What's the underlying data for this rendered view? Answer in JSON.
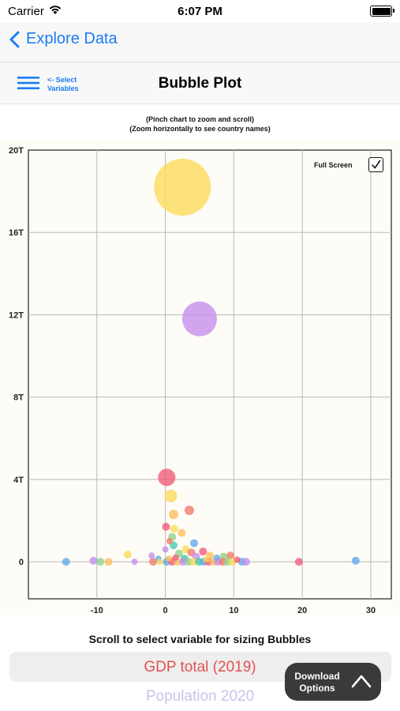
{
  "status_bar": {
    "carrier": "Carrier",
    "time": "6:07 PM"
  },
  "nav": {
    "back_label": "Explore Data"
  },
  "toolbar": {
    "select_vars_line1": "<- Select",
    "select_vars_line2": "Variables",
    "title": "Bubble Plot"
  },
  "hints": {
    "line1": "(Pinch chart to zoom and scroll)",
    "line2": "(Zoom horizontally to see country names)"
  },
  "full_screen": {
    "label": "Full Screen",
    "checked": true
  },
  "bottom": {
    "scroll_label": "Scroll to select variable for sizing Bubbles",
    "selected_option": "GDP total (2019)",
    "next_option": "Population 2020",
    "download_line1": "Download",
    "download_line2": "Options"
  },
  "colors": {
    "accent": "#1a7cf5",
    "selected_option": "#e05252",
    "next_option": "#c8c4ea"
  },
  "chart_data": {
    "type": "scatter",
    "title": "",
    "xlabel": "",
    "ylabel": "",
    "x_ticks": [
      "-10",
      "0",
      "10",
      "20",
      "30"
    ],
    "y_ticks": [
      "0",
      "4T",
      "8T",
      "12T",
      "16T",
      "20T"
    ],
    "xlim": [
      -20,
      33
    ],
    "ylim": [
      -1.8,
      20
    ],
    "grid": true,
    "points": [
      {
        "x": 2.5,
        "y": 18.2,
        "size": 36,
        "color": "#fcd858"
      },
      {
        "x": 5.0,
        "y": 11.8,
        "size": 22,
        "color": "#c38cec"
      },
      {
        "x": 0.2,
        "y": 4.1,
        "size": 11,
        "color": "#ef5a78"
      },
      {
        "x": 0.8,
        "y": 3.2,
        "size": 8,
        "color": "#fcd858"
      },
      {
        "x": 3.5,
        "y": 2.5,
        "size": 6,
        "color": "#f2786a"
      },
      {
        "x": 1.2,
        "y": 2.3,
        "size": 6,
        "color": "#fbbf5c"
      },
      {
        "x": 0.1,
        "y": 1.7,
        "size": 5,
        "color": "#ef5a78"
      },
      {
        "x": 1.3,
        "y": 1.6,
        "size": 5,
        "color": "#fcd858"
      },
      {
        "x": 2.4,
        "y": 1.4,
        "size": 5,
        "color": "#fbbf5c"
      },
      {
        "x": 1.0,
        "y": 1.2,
        "size": 5,
        "color": "#8ed18c"
      },
      {
        "x": 0.6,
        "y": 1.0,
        "size": 4,
        "color": "#f2786a"
      },
      {
        "x": 4.2,
        "y": 0.9,
        "size": 5,
        "color": "#62a7ec"
      },
      {
        "x": 1.2,
        "y": 0.8,
        "size": 5,
        "color": "#45c9a8"
      },
      {
        "x": 0.0,
        "y": 0.6,
        "size": 4,
        "color": "#c38cec"
      },
      {
        "x": 3.0,
        "y": 0.6,
        "size": 5,
        "color": "#fcd858"
      },
      {
        "x": 5.5,
        "y": 0.5,
        "size": 5,
        "color": "#ef5a78"
      },
      {
        "x": 2.0,
        "y": 0.4,
        "size": 5,
        "color": "#8ed18c"
      },
      {
        "x": 3.8,
        "y": 0.45,
        "size": 5,
        "color": "#f2786a"
      },
      {
        "x": -5.5,
        "y": 0.35,
        "size": 5,
        "color": "#fcd858"
      },
      {
        "x": -2.0,
        "y": 0.3,
        "size": 4,
        "color": "#c38cec"
      },
      {
        "x": 6.5,
        "y": 0.3,
        "size": 5,
        "color": "#fbbf5c"
      },
      {
        "x": 8.5,
        "y": 0.25,
        "size": 5,
        "color": "#8ed18c"
      },
      {
        "x": 9.5,
        "y": 0.3,
        "size": 5,
        "color": "#f2786a"
      },
      {
        "x": 7.5,
        "y": 0.2,
        "size": 4,
        "color": "#62a7ec"
      },
      {
        "x": 1.5,
        "y": 0.2,
        "size": 4,
        "color": "#ef5a78"
      },
      {
        "x": 4.5,
        "y": 0.25,
        "size": 5,
        "color": "#c38cec"
      },
      {
        "x": 0.5,
        "y": 0.15,
        "size": 4,
        "color": "#fbbf5c"
      },
      {
        "x": -1.0,
        "y": 0.15,
        "size": 4,
        "color": "#62a7ec"
      },
      {
        "x": 2.8,
        "y": 0.15,
        "size": 5,
        "color": "#45c9a8"
      },
      {
        "x": 6.0,
        "y": 0.12,
        "size": 4,
        "color": "#fcd858"
      },
      {
        "x": 10.5,
        "y": 0.1,
        "size": 4,
        "color": "#ef5a78"
      },
      {
        "x": -14.5,
        "y": 0.0,
        "size": 5,
        "color": "#62a7ec"
      },
      {
        "x": -10.5,
        "y": 0.05,
        "size": 5,
        "color": "#c38cec"
      },
      {
        "x": -9.5,
        "y": 0.0,
        "size": 5,
        "color": "#8ed18c"
      },
      {
        "x": -8.3,
        "y": 0.0,
        "size": 5,
        "color": "#fbbf5c"
      },
      {
        "x": -4.5,
        "y": 0.0,
        "size": 4,
        "color": "#c38cec"
      },
      {
        "x": -1.8,
        "y": 0.0,
        "size": 5,
        "color": "#f2786a"
      },
      {
        "x": -0.8,
        "y": 0.0,
        "size": 4,
        "color": "#fcd858"
      },
      {
        "x": 0.2,
        "y": 0.0,
        "size": 5,
        "color": "#62a7ec"
      },
      {
        "x": 1.0,
        "y": 0.0,
        "size": 5,
        "color": "#ef5a78"
      },
      {
        "x": 1.8,
        "y": 0.0,
        "size": 5,
        "color": "#fbbf5c"
      },
      {
        "x": 2.6,
        "y": 0.0,
        "size": 5,
        "color": "#c38cec"
      },
      {
        "x": 3.4,
        "y": 0.0,
        "size": 5,
        "color": "#8ed18c"
      },
      {
        "x": 4.1,
        "y": 0.0,
        "size": 5,
        "color": "#fcd858"
      },
      {
        "x": 4.9,
        "y": 0.0,
        "size": 5,
        "color": "#45c9a8"
      },
      {
        "x": 5.6,
        "y": 0.0,
        "size": 5,
        "color": "#62a7ec"
      },
      {
        "x": 6.3,
        "y": 0.0,
        "size": 5,
        "color": "#ef5a78"
      },
      {
        "x": 7.0,
        "y": 0.0,
        "size": 5,
        "color": "#fbbf5c"
      },
      {
        "x": 7.7,
        "y": 0.0,
        "size": 5,
        "color": "#c38cec"
      },
      {
        "x": 8.4,
        "y": 0.0,
        "size": 5,
        "color": "#f2786a"
      },
      {
        "x": 9.1,
        "y": 0.0,
        "size": 5,
        "color": "#8ed18c"
      },
      {
        "x": 9.8,
        "y": 0.0,
        "size": 5,
        "color": "#fcd858"
      },
      {
        "x": 11.2,
        "y": 0.0,
        "size": 5,
        "color": "#62a7ec"
      },
      {
        "x": 11.8,
        "y": 0.0,
        "size": 5,
        "color": "#c38cec"
      },
      {
        "x": 19.5,
        "y": 0.0,
        "size": 5,
        "color": "#ef5a78"
      },
      {
        "x": 27.8,
        "y": 0.05,
        "size": 5,
        "color": "#62a7ec"
      }
    ]
  }
}
